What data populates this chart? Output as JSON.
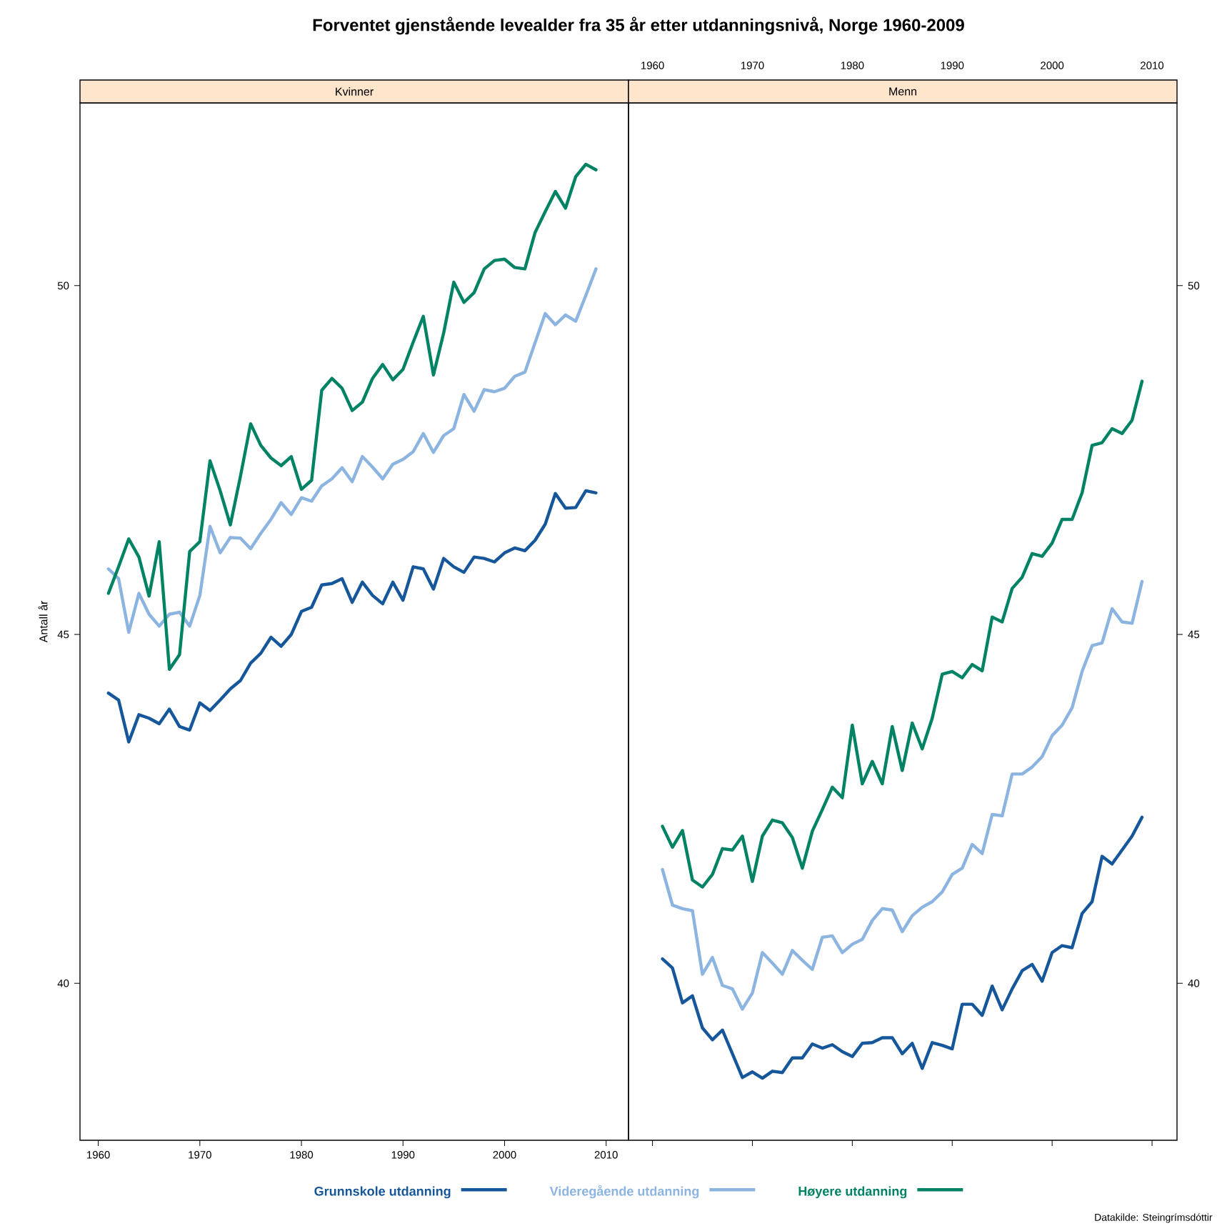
{
  "chart_data": [
    {
      "type": "line",
      "title": "Forventet gjenstående levealder fra 35 år etter utdanningsnivå, Norge 1960-2009",
      "subtitle": "Kvinner",
      "ylabel": "Antall år",
      "legend": "bottom",
      "x": [
        1961,
        1962,
        1963,
        1964,
        1965,
        1966,
        1967,
        1968,
        1969,
        1970,
        1971,
        1972,
        1973,
        1974,
        1975,
        1976,
        1977,
        1978,
        1979,
        1980,
        1981,
        1982,
        1983,
        1984,
        1985,
        1986,
        1987,
        1988,
        1989,
        1990,
        1991,
        1992,
        1993,
        1994,
        1995,
        1996,
        1997,
        1998,
        1999,
        2000,
        2001,
        2002,
        2003,
        2004,
        2005,
        2006,
        2007,
        2008,
        2009
      ],
      "xlim": [
        1958.2,
        2012.2
      ],
      "ylim": [
        37.75,
        52.62
      ],
      "xticks": [
        1960,
        1970,
        1980,
        1990,
        2000,
        2010
      ],
      "yticks": [
        40,
        45,
        50
      ],
      "series": [
        {
          "name": "Grunnskole utdanning",
          "color": "#15579a",
          "values": [
            44.16,
            44.06,
            43.46,
            43.85,
            43.8,
            43.72,
            43.93,
            43.68,
            43.63,
            44.02,
            43.91,
            44.06,
            44.22,
            44.34,
            44.59,
            44.73,
            44.96,
            44.83,
            45.0,
            45.33,
            45.39,
            45.71,
            45.73,
            45.8,
            45.46,
            45.75,
            45.56,
            45.44,
            45.75,
            45.49,
            45.97,
            45.94,
            45.65,
            46.09,
            45.97,
            45.89,
            46.11,
            46.09,
            46.04,
            46.17,
            46.24,
            46.2,
            46.35,
            46.58,
            47.02,
            46.81,
            46.82,
            47.06,
            47.03
          ]
        },
        {
          "name": "Videregående utdanning",
          "color": "#8cb4e1",
          "values": [
            45.94,
            45.8,
            45.03,
            45.59,
            45.29,
            45.12,
            45.29,
            45.32,
            45.12,
            45.56,
            46.55,
            46.17,
            46.39,
            46.38,
            46.23,
            46.45,
            46.65,
            46.89,
            46.72,
            46.96,
            46.91,
            47.13,
            47.23,
            47.39,
            47.19,
            47.55,
            47.4,
            47.23,
            47.44,
            47.51,
            47.62,
            47.88,
            47.61,
            47.85,
            47.95,
            48.44,
            48.2,
            48.51,
            48.48,
            48.53,
            48.7,
            48.76,
            49.18,
            49.6,
            49.44,
            49.58,
            49.49,
            49.86,
            50.24
          ]
        },
        {
          "name": "Høyere utdanning",
          "color": "#008264",
          "values": [
            45.59,
            45.97,
            46.37,
            46.11,
            45.55,
            46.33,
            44.5,
            44.71,
            46.19,
            46.33,
            47.49,
            47.06,
            46.57,
            47.27,
            48.02,
            47.71,
            47.53,
            47.42,
            47.55,
            47.08,
            47.21,
            48.5,
            48.67,
            48.53,
            48.21,
            48.33,
            48.67,
            48.87,
            48.65,
            48.8,
            49.19,
            49.56,
            48.72,
            49.32,
            50.05,
            49.76,
            49.9,
            50.24,
            50.36,
            50.38,
            50.26,
            50.24,
            50.76,
            51.06,
            51.35,
            51.11,
            51.56,
            51.74,
            51.66
          ]
        }
      ]
    },
    {
      "type": "line",
      "subtitle": "Menn",
      "annotations": [
        "Datakilde: Steingrímsdóttir"
      ],
      "x": [
        1961,
        1962,
        1963,
        1964,
        1965,
        1966,
        1967,
        1968,
        1969,
        1970,
        1971,
        1972,
        1973,
        1974,
        1975,
        1976,
        1977,
        1978,
        1979,
        1980,
        1981,
        1982,
        1983,
        1984,
        1985,
        1986,
        1987,
        1988,
        1989,
        1990,
        1991,
        1992,
        1993,
        1994,
        1995,
        1996,
        1997,
        1998,
        1999,
        2000,
        2001,
        2002,
        2003,
        2004,
        2005,
        2006,
        2007,
        2008,
        2009
      ],
      "xlim": [
        1957.6,
        2012.5
      ],
      "ylim": [
        37.75,
        52.62
      ],
      "xticks": [
        1960,
        1970,
        1980,
        1990,
        2000,
        2010
      ],
      "yticks": [
        40,
        45,
        50
      ],
      "series": [
        {
          "color": "#15579a",
          "values": [
            40.35,
            40.22,
            39.72,
            39.82,
            39.36,
            39.19,
            39.33,
            38.99,
            38.65,
            38.73,
            38.64,
            38.74,
            38.72,
            38.93,
            38.93,
            39.13,
            39.07,
            39.12,
            39.02,
            38.95,
            39.14,
            39.15,
            39.22,
            39.22,
            38.99,
            39.14,
            38.78,
            39.15,
            39.11,
            39.06,
            39.7,
            39.7,
            39.54,
            39.96,
            39.62,
            39.92,
            40.18,
            40.27,
            40.03,
            40.44,
            40.54,
            40.51,
            41.0,
            41.17,
            41.82,
            41.71,
            41.91,
            42.11,
            42.38
          ]
        },
        {
          "color": "#8cb4e1",
          "values": [
            41.63,
            41.12,
            41.07,
            41.04,
            40.13,
            40.37,
            39.97,
            39.92,
            39.63,
            39.86,
            40.44,
            40.29,
            40.13,
            40.47,
            40.33,
            40.2,
            40.66,
            40.68,
            40.44,
            40.56,
            40.63,
            40.9,
            41.07,
            41.05,
            40.74,
            40.97,
            41.09,
            41.17,
            41.31,
            41.56,
            41.65,
            41.99,
            41.86,
            42.42,
            42.4,
            43.0,
            43.0,
            43.1,
            43.25,
            43.55,
            43.7,
            43.95,
            44.47,
            44.84,
            44.88,
            45.37,
            45.18,
            45.16,
            45.76
          ]
        },
        {
          "color": "#008264",
          "values": [
            42.25,
            41.95,
            42.19,
            41.48,
            41.38,
            41.56,
            41.93,
            41.91,
            42.11,
            41.46,
            42.11,
            42.34,
            42.3,
            42.09,
            41.65,
            42.18,
            42.49,
            42.81,
            42.66,
            43.7,
            42.86,
            43.18,
            42.86,
            43.68,
            43.05,
            43.73,
            43.36,
            43.8,
            44.43,
            44.47,
            44.38,
            44.57,
            44.48,
            45.25,
            45.18,
            45.66,
            45.82,
            46.16,
            46.12,
            46.31,
            46.65,
            46.65,
            47.03,
            47.71,
            47.75,
            47.95,
            47.88,
            48.07,
            48.63
          ]
        }
      ]
    }
  ]
}
